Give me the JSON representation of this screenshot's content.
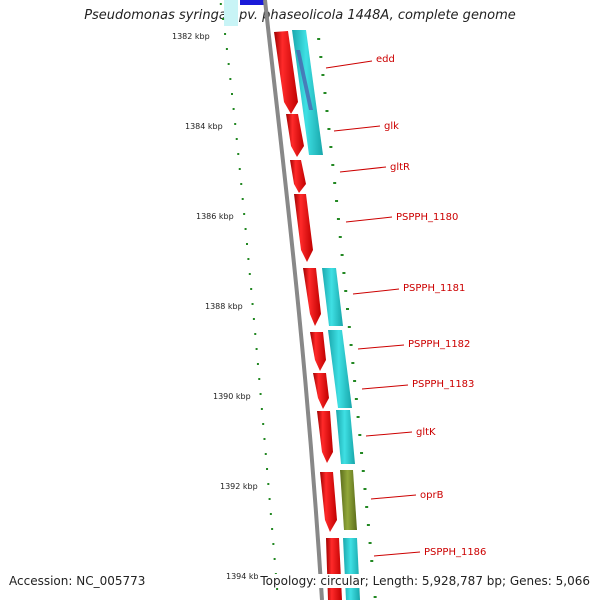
{
  "title": "Pseudomonas syringae pv. phaseolicola 1448A, complete genome",
  "footer": {
    "accession": "Accession: NC_005773",
    "stats": "Topology: circular; Length: 5,928,787 bp; Genes: 5,066"
  },
  "colors": {
    "cds": "#ee1111",
    "cyan_feature": "#22c8cc",
    "olive_feature": "#7a8f2a",
    "blue_feature": "#1a1ad8",
    "backbone": "#888888",
    "tick": "#228822",
    "label": "#cc0000"
  },
  "scale": {
    "labels": [
      "1382 kbp",
      "1384 kbp",
      "1386 kbp",
      "1388 kbp",
      "1390 kbp",
      "1392 kbp",
      "1394 kbp"
    ]
  },
  "genes": [
    "edd",
    "glk",
    "gltR",
    "PSPPH_1180",
    "PSPPH_1181",
    "PSPPH_1182",
    "PSPPH_1183",
    "gltK",
    "oprB",
    "PSPPH_1186"
  ]
}
